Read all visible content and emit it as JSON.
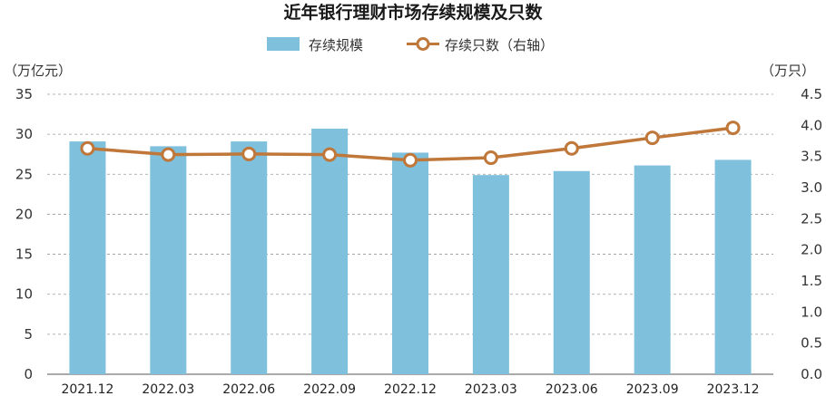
{
  "chart_data": {
    "type": "bar",
    "title": "近年银行理财市场存续规模及只数",
    "categories": [
      "2021.12",
      "2022.03",
      "2022.06",
      "2022.09",
      "2022.12",
      "2023.03",
      "2023.06",
      "2023.09",
      "2023.12"
    ],
    "series": [
      {
        "name": "存续规模",
        "type": "bar",
        "axis": "left",
        "color": "#7fc0dd",
        "values": [
          29.1,
          28.5,
          29.1,
          30.7,
          27.7,
          24.9,
          25.4,
          26.1,
          26.8
        ]
      },
      {
        "name": "存续只数（右轴）",
        "type": "line",
        "axis": "right",
        "color": "#c0773a",
        "values": [
          3.63,
          3.53,
          3.54,
          3.53,
          3.44,
          3.48,
          3.63,
          3.8,
          3.96
        ]
      }
    ],
    "y_left": {
      "unit": "（万亿元）",
      "ylim": [
        0,
        35
      ],
      "ticks": [
        "0",
        "5",
        "10",
        "15",
        "20",
        "25",
        "30",
        "35"
      ]
    },
    "y_right": {
      "unit": "（万只）",
      "ylim": [
        0,
        4.5
      ],
      "ticks": [
        "0.0",
        "0.5",
        "1.0",
        "1.5",
        "2.0",
        "2.5",
        "3.0",
        "3.5",
        "4.0",
        "4.5"
      ]
    },
    "grid": "horizontal-dashed",
    "legend": "top-center"
  }
}
